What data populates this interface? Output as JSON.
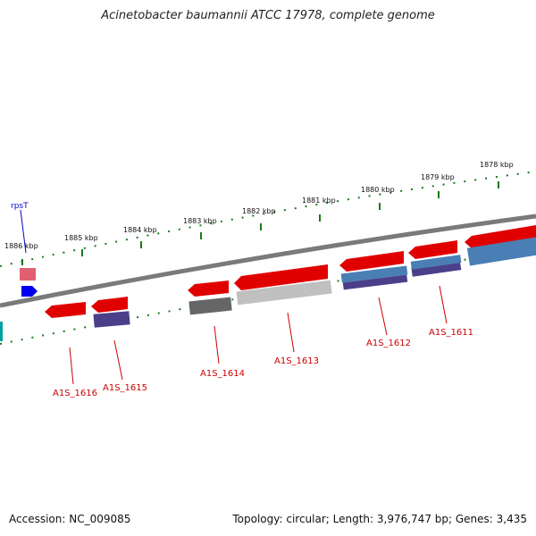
{
  "title": "Acinetobacter baumannii ATCC 17978, complete genome",
  "footer": {
    "accession": "Accession: NC_009085",
    "summary": "Topology: circular; Length: 3,976,747 bp; Genes: 3,435"
  },
  "ticks": [
    "1886 kbp",
    "1885 kbp",
    "1884 kbp",
    "1883 kbp",
    "1882 kbp",
    "1881 kbp",
    "1880 kbp",
    "1879 kbp",
    "1878 kbp"
  ],
  "gene_labels": {
    "rpsT": "rpsT",
    "A1S_1616": "A1S_1616",
    "A1S_1615": "A1S_1615",
    "A1S_1614": "A1S_1614",
    "A1S_1613": "A1S_1613",
    "A1S_1612": "A1S_1612",
    "A1S_1611": "A1S_1611"
  },
  "colors": {
    "backbone": "#7a7a7a",
    "cds": "#e00000",
    "rna": "#e06070",
    "feature_blue": "#4a7fb5",
    "feature_purple": "#4b3f8a",
    "feature_gray": "#666666",
    "feature_lightgray": "#c0c0c0",
    "gc_dots": "#1a7a1a",
    "label_red": "#cc0000",
    "label_blue": "#0000cc"
  }
}
